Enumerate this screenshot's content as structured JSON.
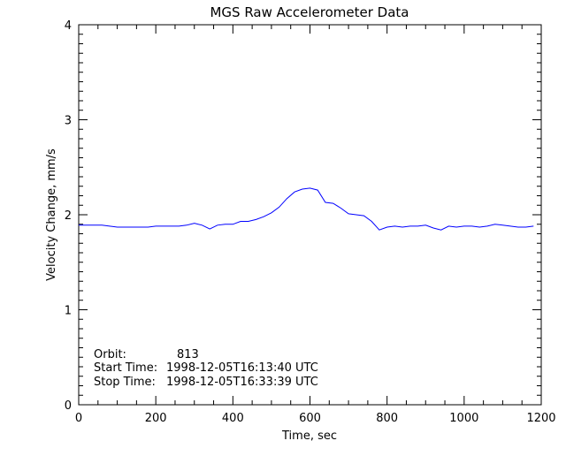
{
  "chart_data": {
    "type": "line",
    "title": "MGS Raw Accelerometer Data",
    "xlabel": "Time, sec",
    "ylabel": "Velocity Change, mm/s",
    "xlim": [
      0,
      1200
    ],
    "ylim": [
      0,
      4
    ],
    "x_ticks": [
      "0",
      "200",
      "400",
      "600",
      "800",
      "1000",
      "1200"
    ],
    "y_ticks": [
      "0",
      "1",
      "2",
      "3",
      "4"
    ],
    "grid": false,
    "line_color": "#0000ff",
    "series": [
      {
        "x": [
          0,
          20,
          40,
          60,
          80,
          100,
          120,
          140,
          160,
          180,
          200,
          220,
          240,
          260,
          280,
          300,
          320,
          340,
          360,
          380,
          400,
          420,
          440,
          460,
          480,
          500,
          520,
          540,
          560,
          580,
          600,
          620,
          640,
          660,
          680,
          700,
          720,
          740,
          760,
          780,
          800,
          820,
          840,
          860,
          880,
          900,
          920,
          940,
          960,
          980,
          1000,
          1020,
          1040,
          1060,
          1080,
          1100,
          1120,
          1140,
          1160,
          1180
        ],
        "y": [
          1.89,
          1.89,
          1.89,
          1.89,
          1.88,
          1.87,
          1.87,
          1.87,
          1.87,
          1.87,
          1.88,
          1.88,
          1.88,
          1.88,
          1.89,
          1.91,
          1.89,
          1.85,
          1.89,
          1.9,
          1.9,
          1.93,
          1.93,
          1.95,
          1.98,
          2.02,
          2.08,
          2.17,
          2.24,
          2.27,
          2.28,
          2.26,
          2.13,
          2.12,
          2.07,
          2.01,
          2.0,
          1.99,
          1.93,
          1.84,
          1.87,
          1.88,
          1.87,
          1.88,
          1.88,
          1.89,
          1.86,
          1.84,
          1.88,
          1.87,
          1.88,
          1.88,
          1.87,
          1.88,
          1.9,
          1.89,
          1.88,
          1.87,
          1.87,
          1.88
        ]
      }
    ],
    "annotations": {
      "orbit_label": "Orbit:",
      "orbit_value": "813",
      "start_label": "Start Time:",
      "start_value": "1998-12-05T16:13:40 UTC",
      "stop_label": "Stop Time:",
      "stop_value": "1998-12-05T16:33:39 UTC"
    }
  }
}
